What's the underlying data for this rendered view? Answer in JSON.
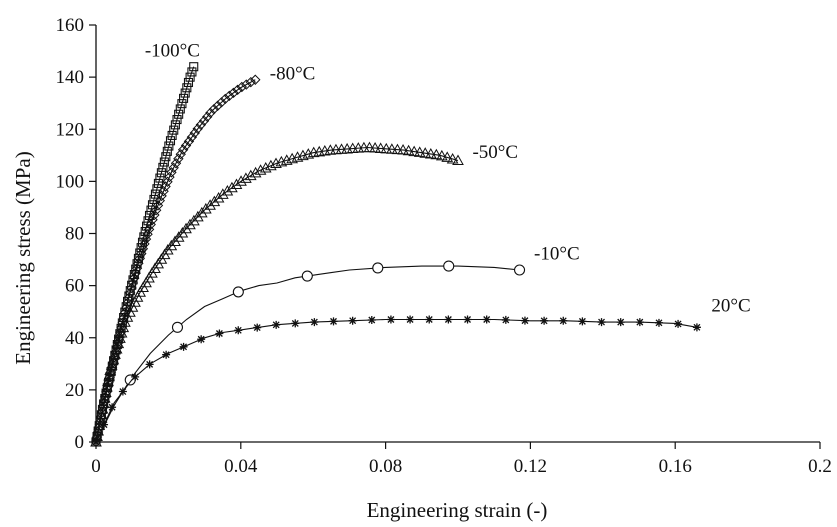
{
  "chart_data": {
    "type": "line",
    "title": "",
    "xlabel": "Engineering strain (-)",
    "ylabel": "Engineering stress (MPa)",
    "xlim": [
      0,
      0.2
    ],
    "ylim": [
      0,
      160
    ],
    "xticks": [
      0,
      0.04,
      0.08,
      0.12,
      0.16,
      0.2
    ],
    "xtick_labels": [
      "0",
      "0.04",
      "0.08",
      "0.12",
      "0.16",
      "0.2"
    ],
    "yticks": [
      0,
      20,
      40,
      60,
      80,
      100,
      120,
      140,
      160
    ],
    "ytick_labels": [
      "0",
      "20",
      "40",
      "60",
      "80",
      "100",
      "120",
      "140",
      "160"
    ],
    "grid": false,
    "legend": "none",
    "series": [
      {
        "name": "-100°C",
        "marker": "square",
        "x": [
          0,
          0.002,
          0.004,
          0.006,
          0.008,
          0.01,
          0.012,
          0.014,
          0.016,
          0.018,
          0.02,
          0.022,
          0.024,
          0.026,
          0.027
        ],
        "y": [
          0,
          14,
          26,
          38,
          50,
          61,
          72,
          83,
          93,
          103,
          113,
          122,
          131,
          140,
          144
        ]
      },
      {
        "name": "-80°C",
        "marker": "diamond",
        "x": [
          0,
          0.003,
          0.006,
          0.009,
          0.012,
          0.015,
          0.018,
          0.021,
          0.024,
          0.028,
          0.032,
          0.036,
          0.04,
          0.044
        ],
        "y": [
          0,
          20,
          38,
          55,
          70,
          83,
          94,
          104,
          112,
          120,
          127,
          132,
          136,
          139
        ]
      },
      {
        "name": "-50°C",
        "marker": "triangle",
        "x": [
          0,
          0.004,
          0.008,
          0.012,
          0.016,
          0.02,
          0.025,
          0.03,
          0.035,
          0.04,
          0.045,
          0.05,
          0.055,
          0.06,
          0.065,
          0.07,
          0.075,
          0.08,
          0.085,
          0.09,
          0.095,
          0.1
        ],
        "y": [
          0,
          28,
          46,
          57,
          66,
          74,
          82,
          89,
          95,
          100,
          104,
          107,
          109,
          111,
          112,
          112.5,
          113,
          112.5,
          112,
          111,
          110,
          108
        ]
      },
      {
        "name": "-10°C",
        "marker": "circle",
        "x": [
          0,
          0.005,
          0.01,
          0.015,
          0.02,
          0.025,
          0.03,
          0.035,
          0.04,
          0.045,
          0.05,
          0.055,
          0.06,
          0.065,
          0.07,
          0.08,
          0.09,
          0.1,
          0.11,
          0.117
        ],
        "y": [
          0,
          14,
          25,
          34,
          41,
          47,
          52,
          55,
          58,
          60,
          61,
          63,
          64,
          65,
          66,
          67,
          67.5,
          67.5,
          67,
          66
        ]
      },
      {
        "name": "20°C",
        "marker": "star",
        "x": [
          0,
          0.005,
          0.01,
          0.015,
          0.02,
          0.025,
          0.03,
          0.035,
          0.04,
          0.045,
          0.05,
          0.06,
          0.07,
          0.08,
          0.09,
          0.1,
          0.11,
          0.12,
          0.13,
          0.14,
          0.15,
          0.16,
          0.166
        ],
        "y": [
          0,
          15,
          24,
          30,
          34,
          37,
          40,
          42,
          43,
          44,
          45,
          46,
          46.5,
          47,
          47,
          47,
          47,
          46.5,
          46.5,
          46,
          46,
          45.5,
          44
        ]
      }
    ],
    "annotations": [
      {
        "text": "-100°C",
        "x": 0.0135,
        "y": 148
      },
      {
        "text": "-80°C",
        "x": 0.048,
        "y": 139
      },
      {
        "text": "-50°C",
        "x": 0.104,
        "y": 109
      },
      {
        "text": "-10°C",
        "x": 0.121,
        "y": 70
      },
      {
        "text": "20°C",
        "x": 0.17,
        "y": 50
      }
    ]
  }
}
